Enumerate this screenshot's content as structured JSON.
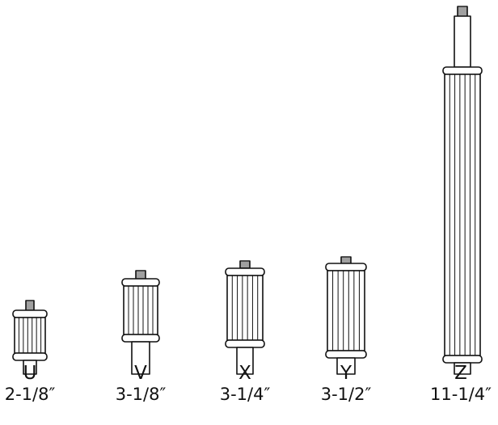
{
  "standoffs": [
    {
      "letter": "U",
      "size": "2-1/8″"
    },
    {
      "letter": "V",
      "size": "3-1/8″"
    },
    {
      "letter": "X",
      "size": "3-1/4″"
    },
    {
      "letter": "Y",
      "size": "3-1/2″"
    },
    {
      "letter": "Z",
      "size": "11-1/4″"
    }
  ]
}
